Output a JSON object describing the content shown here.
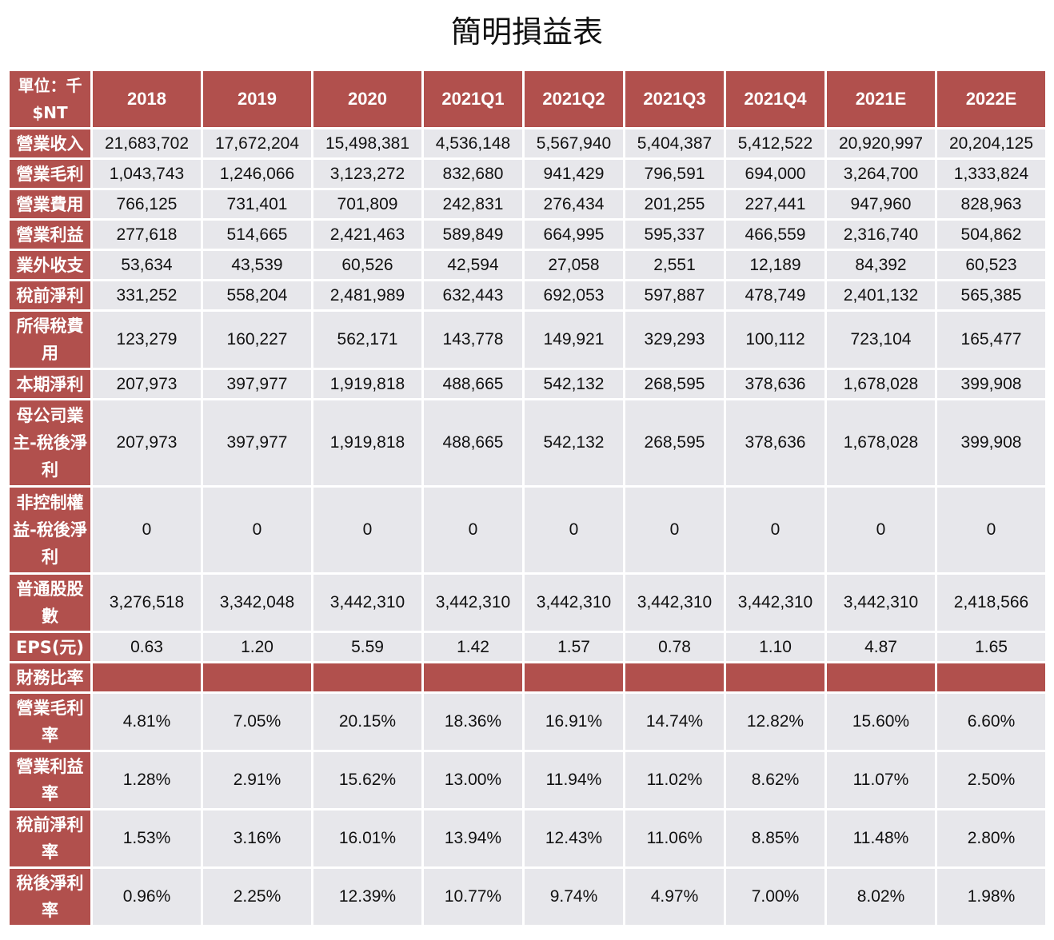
{
  "title": "簡明損益表",
  "colors": {
    "header_bg": "#b1504d",
    "cell_bg": "#e7e7eb",
    "header_text": "#ffffff"
  },
  "table": {
    "unit_label": "單位：千$NT",
    "columns": [
      "2018",
      "2019",
      "2020",
      "2021Q1",
      "2021Q2",
      "2021Q3",
      "2021Q4",
      "2021E",
      "2022E"
    ],
    "rows": [
      {
        "label": "營業收入",
        "values": [
          "21,683,702",
          "17,672,204",
          "15,498,381",
          "4,536,148",
          "5,567,940",
          "5,404,387",
          "5,412,522",
          "20,920,997",
          "20,204,125"
        ]
      },
      {
        "label": "營業毛利",
        "values": [
          "1,043,743",
          "1,246,066",
          "3,123,272",
          "832,680",
          "941,429",
          "796,591",
          "694,000",
          "3,264,700",
          "1,333,824"
        ]
      },
      {
        "label": "營業費用",
        "values": [
          "766,125",
          "731,401",
          "701,809",
          "242,831",
          "276,434",
          "201,255",
          "227,441",
          "947,960",
          "828,963"
        ]
      },
      {
        "label": "營業利益",
        "values": [
          "277,618",
          "514,665",
          "2,421,463",
          "589,849",
          "664,995",
          "595,337",
          "466,559",
          "2,316,740",
          "504,862"
        ]
      },
      {
        "label": "業外收支",
        "values": [
          "53,634",
          "43,539",
          "60,526",
          "42,594",
          "27,058",
          "2,551",
          "12,189",
          "84,392",
          "60,523"
        ]
      },
      {
        "label": "稅前淨利",
        "values": [
          "331,252",
          "558,204",
          "2,481,989",
          "632,443",
          "692,053",
          "597,887",
          "478,749",
          "2,401,132",
          "565,385"
        ]
      },
      {
        "label": "所得稅費用",
        "values": [
          "123,279",
          "160,227",
          "562,171",
          "143,778",
          "149,921",
          "329,293",
          "100,112",
          "723,104",
          "165,477"
        ]
      },
      {
        "label": "本期淨利",
        "values": [
          "207,973",
          "397,977",
          "1,919,818",
          "488,665",
          "542,132",
          "268,595",
          "378,636",
          "1,678,028",
          "399,908"
        ]
      },
      {
        "label": "母公司業主-稅後淨利",
        "values": [
          "207,973",
          "397,977",
          "1,919,818",
          "488,665",
          "542,132",
          "268,595",
          "378,636",
          "1,678,028",
          "399,908"
        ]
      },
      {
        "label": "非控制權益-稅後淨利",
        "values": [
          "0",
          "0",
          "0",
          "0",
          "0",
          "0",
          "0",
          "0",
          "0"
        ]
      },
      {
        "label": "普通股股數",
        "values": [
          "3,276,518",
          "3,342,048",
          "3,442,310",
          "3,442,310",
          "3,442,310",
          "3,442,310",
          "3,442,310",
          "3,442,310",
          "2,418,566"
        ]
      },
      {
        "label": "EPS(元)",
        "values": [
          "0.63",
          "1.20",
          "5.59",
          "1.42",
          "1.57",
          "0.78",
          "1.10",
          "4.87",
          "1.65"
        ]
      },
      {
        "label": "財務比率",
        "section": true,
        "values": []
      },
      {
        "label": "營業毛利率",
        "values": [
          "4.81%",
          "7.05%",
          "20.15%",
          "18.36%",
          "16.91%",
          "14.74%",
          "12.82%",
          "15.60%",
          "6.60%"
        ]
      },
      {
        "label": "營業利益率",
        "values": [
          "1.28%",
          "2.91%",
          "15.62%",
          "13.00%",
          "11.94%",
          "11.02%",
          "8.62%",
          "11.07%",
          "2.50%"
        ]
      },
      {
        "label": "稅前淨利率",
        "values": [
          "1.53%",
          "3.16%",
          "16.01%",
          "13.94%",
          "12.43%",
          "11.06%",
          "8.85%",
          "11.48%",
          "2.80%"
        ]
      },
      {
        "label": "稅後淨利率",
        "values": [
          "0.96%",
          "2.25%",
          "12.39%",
          "10.77%",
          "9.74%",
          "4.97%",
          "7.00%",
          "8.02%",
          "1.98%"
        ]
      }
    ]
  }
}
